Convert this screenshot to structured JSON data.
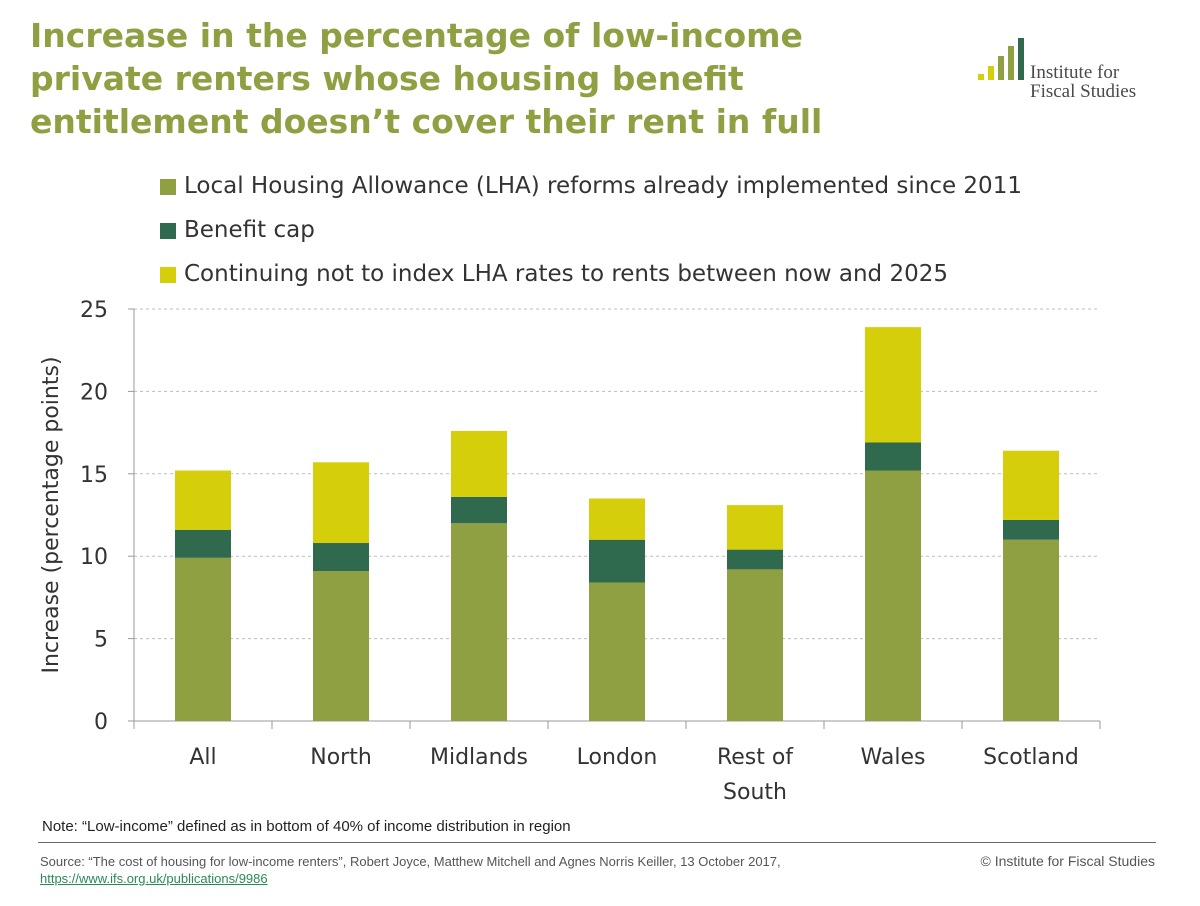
{
  "header": {
    "title": "Increase in the percentage of low-income private renters whose housing benefit entitlement doesn’t cover their rent in full",
    "logo_line1": "Institute for",
    "logo_line2": "Fiscal Studies"
  },
  "colors": {
    "lha": "#8fa043",
    "cap": "#2f6a4f",
    "index": "#d4cf0a",
    "title": "#8fa043",
    "grid": "#bdbdbd"
  },
  "chart_data": {
    "type": "bar",
    "stacked": true,
    "title": "Increase in the percentage of low-income private renters whose housing benefit entitlement doesn’t cover their rent in full",
    "xlabel": "",
    "ylabel": "Increase (percentage points)",
    "ylim": [
      0,
      25
    ],
    "yticks": [
      0,
      5,
      10,
      15,
      20,
      25
    ],
    "grid": true,
    "legend_position": "top-left",
    "categories": [
      [
        "All"
      ],
      [
        "North"
      ],
      [
        "Midlands"
      ],
      [
        "London"
      ],
      [
        "Rest of",
        "South"
      ],
      [
        "Wales"
      ],
      [
        "Scotland"
      ]
    ],
    "series": [
      {
        "name": "Local Housing Allowance (LHA) reforms already implemented since 2011",
        "color": "#8fa043",
        "values": [
          9.9,
          9.1,
          12.0,
          8.4,
          9.2,
          15.2,
          11.0
        ]
      },
      {
        "name": "Benefit cap",
        "color": "#2f6a4f",
        "values": [
          1.7,
          1.7,
          1.6,
          2.6,
          1.2,
          1.7,
          1.2
        ]
      },
      {
        "name": "Continuing not to index LHA rates to rents between now and 2025",
        "color": "#d4cf0a",
        "values": [
          3.6,
          4.9,
          4.0,
          2.5,
          2.7,
          7.0,
          4.2
        ]
      }
    ]
  },
  "footer": {
    "note": "Note: “Low-income” defined as in bottom of 40% of income distribution in region",
    "source": "Source:  “The cost of housing for low-income renters”,  Robert Joyce, Matthew Mitchell and Agnes Norris Keiller, 13 October 2017,",
    "source_link": "https://www.ifs.org.uk/publications/9986",
    "copyright": "© Institute for Fiscal Studies"
  }
}
